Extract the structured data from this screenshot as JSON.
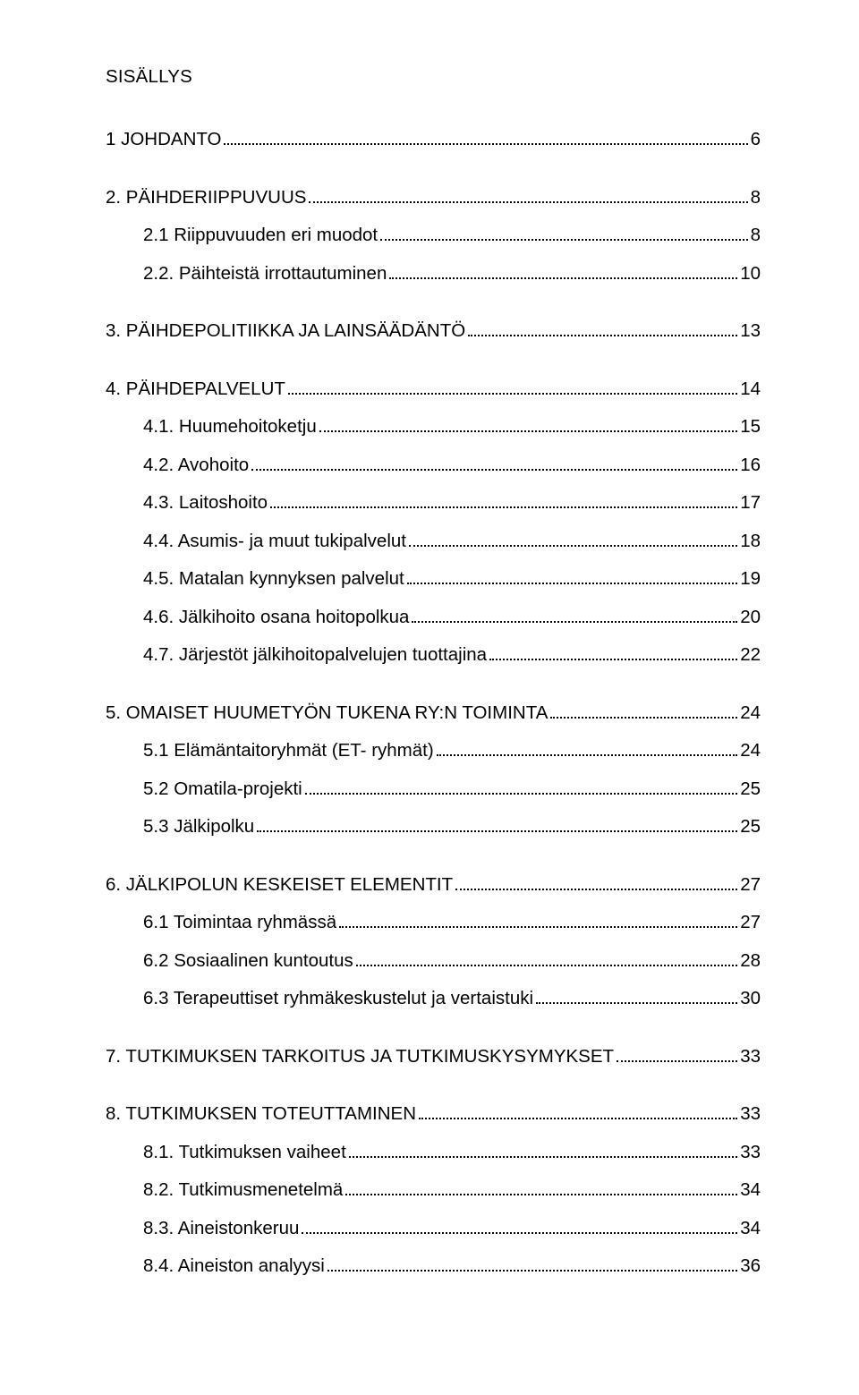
{
  "doc": {
    "title": "SISÄLLYS",
    "text_color": "#000000",
    "background_color": "#ffffff",
    "font_family": "Arial",
    "base_fontsize_pt": 15
  },
  "toc": [
    {
      "entries": [
        {
          "label": "1 JOHDANTO",
          "page": "6",
          "indent": false
        }
      ]
    },
    {
      "entries": [
        {
          "label": "2. PÄIHDERIIPPUVUUS",
          "page": "8",
          "indent": false
        },
        {
          "label": "2.1 Riippuvuuden eri muodot",
          "page": "8",
          "indent": true
        },
        {
          "label": "2.2. Päihteistä irrottautuminen",
          "page": "10",
          "indent": true
        }
      ]
    },
    {
      "entries": [
        {
          "label": "3. PÄIHDEPOLITIIKKA JA LAINSÄÄDÄNTÖ",
          "page": "13",
          "indent": false
        }
      ]
    },
    {
      "entries": [
        {
          "label": "4. PÄIHDEPALVELUT",
          "page": "14",
          "indent": false
        },
        {
          "label": "4.1. Huumehoitoketju",
          "page": "15",
          "indent": true
        },
        {
          "label": "4.2. Avohoito",
          "page": "16",
          "indent": true
        },
        {
          "label": "4.3. Laitoshoito",
          "page": "17",
          "indent": true
        },
        {
          "label": "4.4. Asumis- ja muut tukipalvelut",
          "page": "18",
          "indent": true
        },
        {
          "label": "4.5. Matalan kynnyksen palvelut",
          "page": "19",
          "indent": true
        },
        {
          "label": "4.6. Jälkihoito osana hoitopolkua",
          "page": "20",
          "indent": true
        },
        {
          "label": "4.7. Järjestöt jälkihoitopalvelujen tuottajina",
          "page": "22",
          "indent": true
        }
      ]
    },
    {
      "entries": [
        {
          "label": "5. OMAISET HUUMETYÖN TUKENA RY:N TOIMINTA",
          "page": "24",
          "indent": false
        },
        {
          "label": "5.1 Elämäntaitoryhmät (ET- ryhmät)",
          "page": "24",
          "indent": true
        },
        {
          "label": "5.2 Omatila-projekti",
          "page": "25",
          "indent": true
        },
        {
          "label": "5.3 Jälkipolku",
          "page": "25",
          "indent": true
        }
      ]
    },
    {
      "entries": [
        {
          "label": "6. JÄLKIPOLUN KESKEISET ELEMENTIT",
          "page": "27",
          "indent": false
        },
        {
          "label": "6.1 Toimintaa ryhmässä",
          "page": "27",
          "indent": true
        },
        {
          "label": "6.2 Sosiaalinen kuntoutus",
          "page": "28",
          "indent": true
        },
        {
          "label": "6.3 Terapeuttiset ryhmäkeskustelut ja vertaistuki",
          "page": "30",
          "indent": true
        }
      ]
    },
    {
      "entries": [
        {
          "label": "7. TUTKIMUKSEN TARKOITUS JA TUTKIMUSKYSYMYKSET",
          "page": "33",
          "indent": false
        }
      ]
    },
    {
      "entries": [
        {
          "label": "8. TUTKIMUKSEN TOTEUTTAMINEN",
          "page": "33",
          "indent": false
        },
        {
          "label": "8.1. Tutkimuksen vaiheet",
          "page": "33",
          "indent": true
        },
        {
          "label": "8.2. Tutkimusmenetelmä",
          "page": "34",
          "indent": true
        },
        {
          "label": "8.3. Aineistonkeruu",
          "page": "34",
          "indent": true
        },
        {
          "label": "8.4. Aineiston analyysi",
          "page": "36",
          "indent": true
        }
      ]
    }
  ]
}
